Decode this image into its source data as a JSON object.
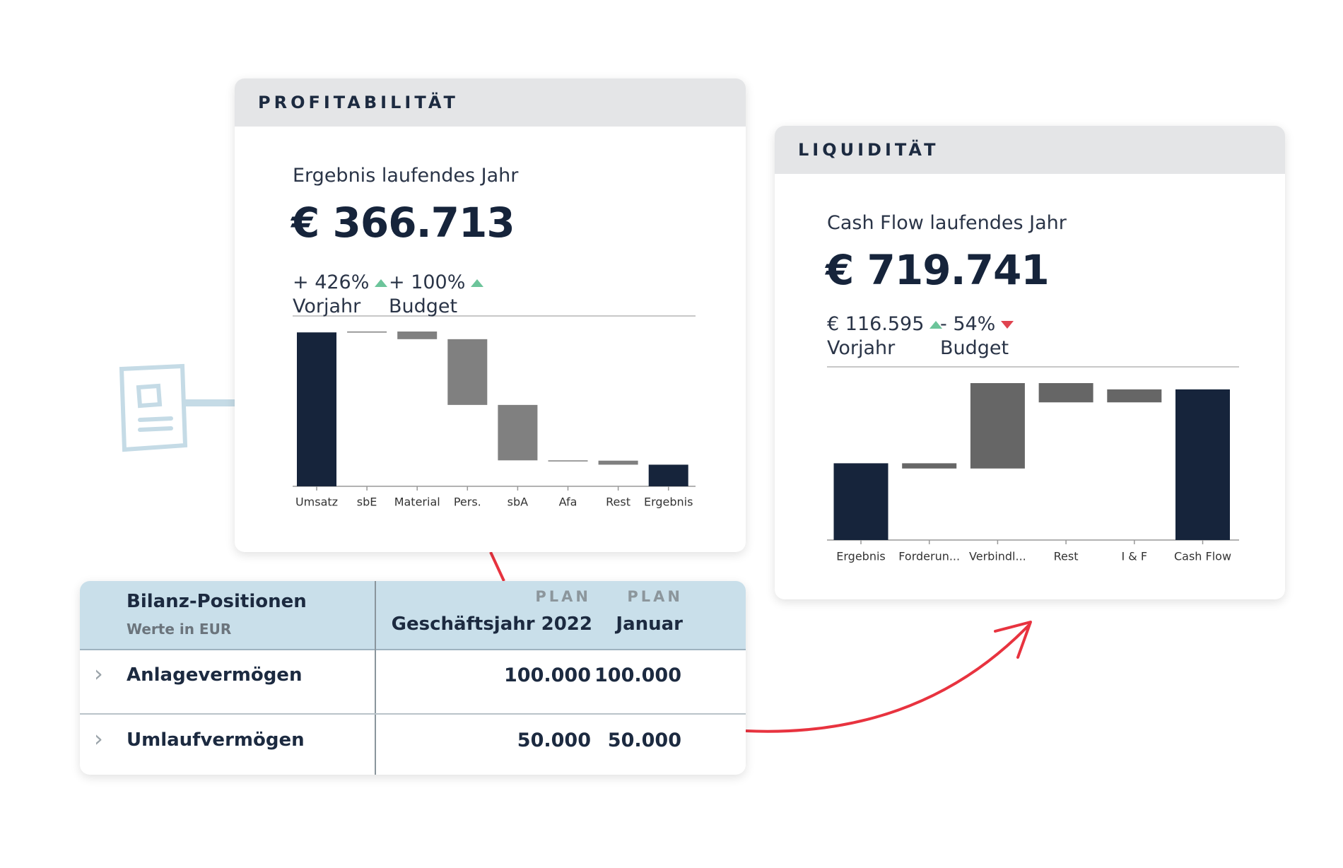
{
  "cards": [
    {
      "header": "PROFITABILITÄT",
      "kpi_label": "Ergebnis laufendes Jahr",
      "kpi_value": "€ 366.713",
      "deltas": [
        {
          "value": "+ 426%",
          "label": "Vorjahr",
          "trend": "up"
        },
        {
          "value": "+ 100%",
          "label": "Budget",
          "trend": "up"
        }
      ]
    },
    {
      "header": "LIQUIDITÄT",
      "kpi_label": "Cash Flow laufendes Jahr",
      "kpi_value": "€ 719.741",
      "deltas": [
        {
          "value": "€ 116.595",
          "label": "Vorjahr",
          "trend": "up"
        },
        {
          "value": "- 54%",
          "label": "Budget",
          "trend": "down"
        }
      ]
    }
  ],
  "chart_data": [
    {
      "type": "waterfall",
      "categories": [
        "Umsatz",
        "sbE",
        "Material",
        "Pers.",
        "sbA",
        "Afa",
        "Rest",
        "Ergebnis"
      ],
      "values": [
        2610000,
        15000,
        -130000,
        -1115000,
        -940000,
        -5000,
        -68287,
        366713
      ],
      "total_color": "#16243b",
      "delta_color": "#808080"
    },
    {
      "type": "waterfall",
      "categories": [
        "Ergebnis",
        "Forderun...",
        "Verbindl...",
        "Rest",
        "I & F",
        "Cash Flow"
      ],
      "values": [
        366713,
        -25000,
        408000,
        -92000,
        62028,
        719741
      ],
      "total_color": "#16243b",
      "delta_color": "#666666"
    }
  ],
  "table": {
    "title": "Bilanz-Positionen",
    "subtitle": "Werte in EUR",
    "columns": [
      {
        "kicker": "PLAN",
        "label": "Geschäftsjahr 2022"
      },
      {
        "kicker": "PLAN",
        "label": "Januar"
      }
    ],
    "rows": [
      [
        "Anlagevermögen",
        "100.000",
        "100.000"
      ],
      [
        "Umlaufvermögen",
        "50.000",
        "50.000"
      ]
    ]
  }
}
